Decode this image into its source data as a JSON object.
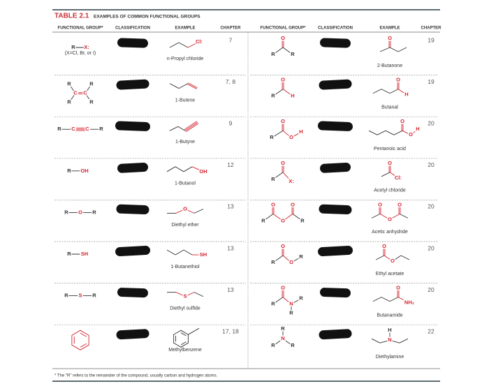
{
  "table": {
    "number": "TABLE 2.1",
    "title": "EXAMPLES OF COMMON FUNCTIONAL GROUPS",
    "headers": [
      "FUNCTIONAL GROUP*",
      "CLASSIFICATION",
      "EXAMPLE",
      "CHAPTER"
    ],
    "left_rows": [
      {
        "group_atoms": [
          "R",
          "X:"
        ],
        "group_note": "(X=Cl, Br, or I)",
        "example_atoms": [
          "Cl:"
        ],
        "example": "n-Propyl chloride",
        "chapter": "7"
      },
      {
        "group_atoms": [
          "R",
          "R",
          "R",
          "R",
          "C",
          "C"
        ],
        "example_atoms": [],
        "example": "1-Butene",
        "chapter": "7, 8"
      },
      {
        "group_atoms": [
          "R",
          "C",
          "C",
          "R"
        ],
        "example_atoms": [],
        "example": "1-Butyne",
        "chapter": "9"
      },
      {
        "group_atoms": [
          "R",
          "OH"
        ],
        "example_atoms": [
          "OH"
        ],
        "example": "1-Butanol",
        "chapter": "12"
      },
      {
        "group_atoms": [
          "R",
          "O",
          "R"
        ],
        "example_atoms": [
          "O"
        ],
        "example": "Diethyl ether",
        "chapter": "13"
      },
      {
        "group_atoms": [
          "R",
          "SH"
        ],
        "example_atoms": [
          "SH"
        ],
        "example": "1-Butanethiol",
        "chapter": "13"
      },
      {
        "group_atoms": [
          "R",
          "S",
          "R"
        ],
        "example_atoms": [
          "S"
        ],
        "example": "Diethyl sulfide",
        "chapter": "13"
      },
      {
        "group_atoms": [],
        "example_atoms": [],
        "example": "Methylbenzene",
        "chapter": "17, 18"
      }
    ],
    "right_rows": [
      {
        "group_atoms": [
          "O",
          "R",
          "R"
        ],
        "example_atoms": [
          "O"
        ],
        "example": "2-Butanone",
        "chapter": "19"
      },
      {
        "group_atoms": [
          "O",
          "R",
          "H"
        ],
        "example_atoms": [
          "O",
          "H"
        ],
        "example": "Butanal",
        "chapter": "19"
      },
      {
        "group_atoms": [
          "O",
          "R",
          "O",
          "H"
        ],
        "example_atoms": [
          "O",
          "O",
          "H"
        ],
        "example": "Pentanoic acid",
        "chapter": "20"
      },
      {
        "group_atoms": [
          "O",
          "R",
          "X:"
        ],
        "example_atoms": [
          "O",
          "Cl:"
        ],
        "example": "Acetyl chloride",
        "chapter": "20"
      },
      {
        "group_atoms": [
          "O",
          "O",
          "R",
          "O",
          "R"
        ],
        "example_atoms": [
          "O",
          "O",
          "O"
        ],
        "example": "Acetic anhydride",
        "chapter": "20"
      },
      {
        "group_atoms": [
          "O",
          "R",
          "O",
          "R"
        ],
        "example_atoms": [
          "O",
          "O"
        ],
        "example": "Ethyl acetate",
        "chapter": "20"
      },
      {
        "group_atoms": [
          "O",
          "R",
          "N",
          "R",
          "R"
        ],
        "example_atoms": [
          "O",
          "NH₂"
        ],
        "example": "Butanamide",
        "chapter": "20"
      },
      {
        "group_atoms": [
          "R",
          "N",
          "R",
          "R"
        ],
        "example_atoms": [
          "H",
          "N"
        ],
        "example": "Diethylamine",
        "chapter": "22"
      }
    ],
    "footnote": "* The \"R\" refers to the remainder of the compound, usually carbon and hydrogen atoms."
  }
}
